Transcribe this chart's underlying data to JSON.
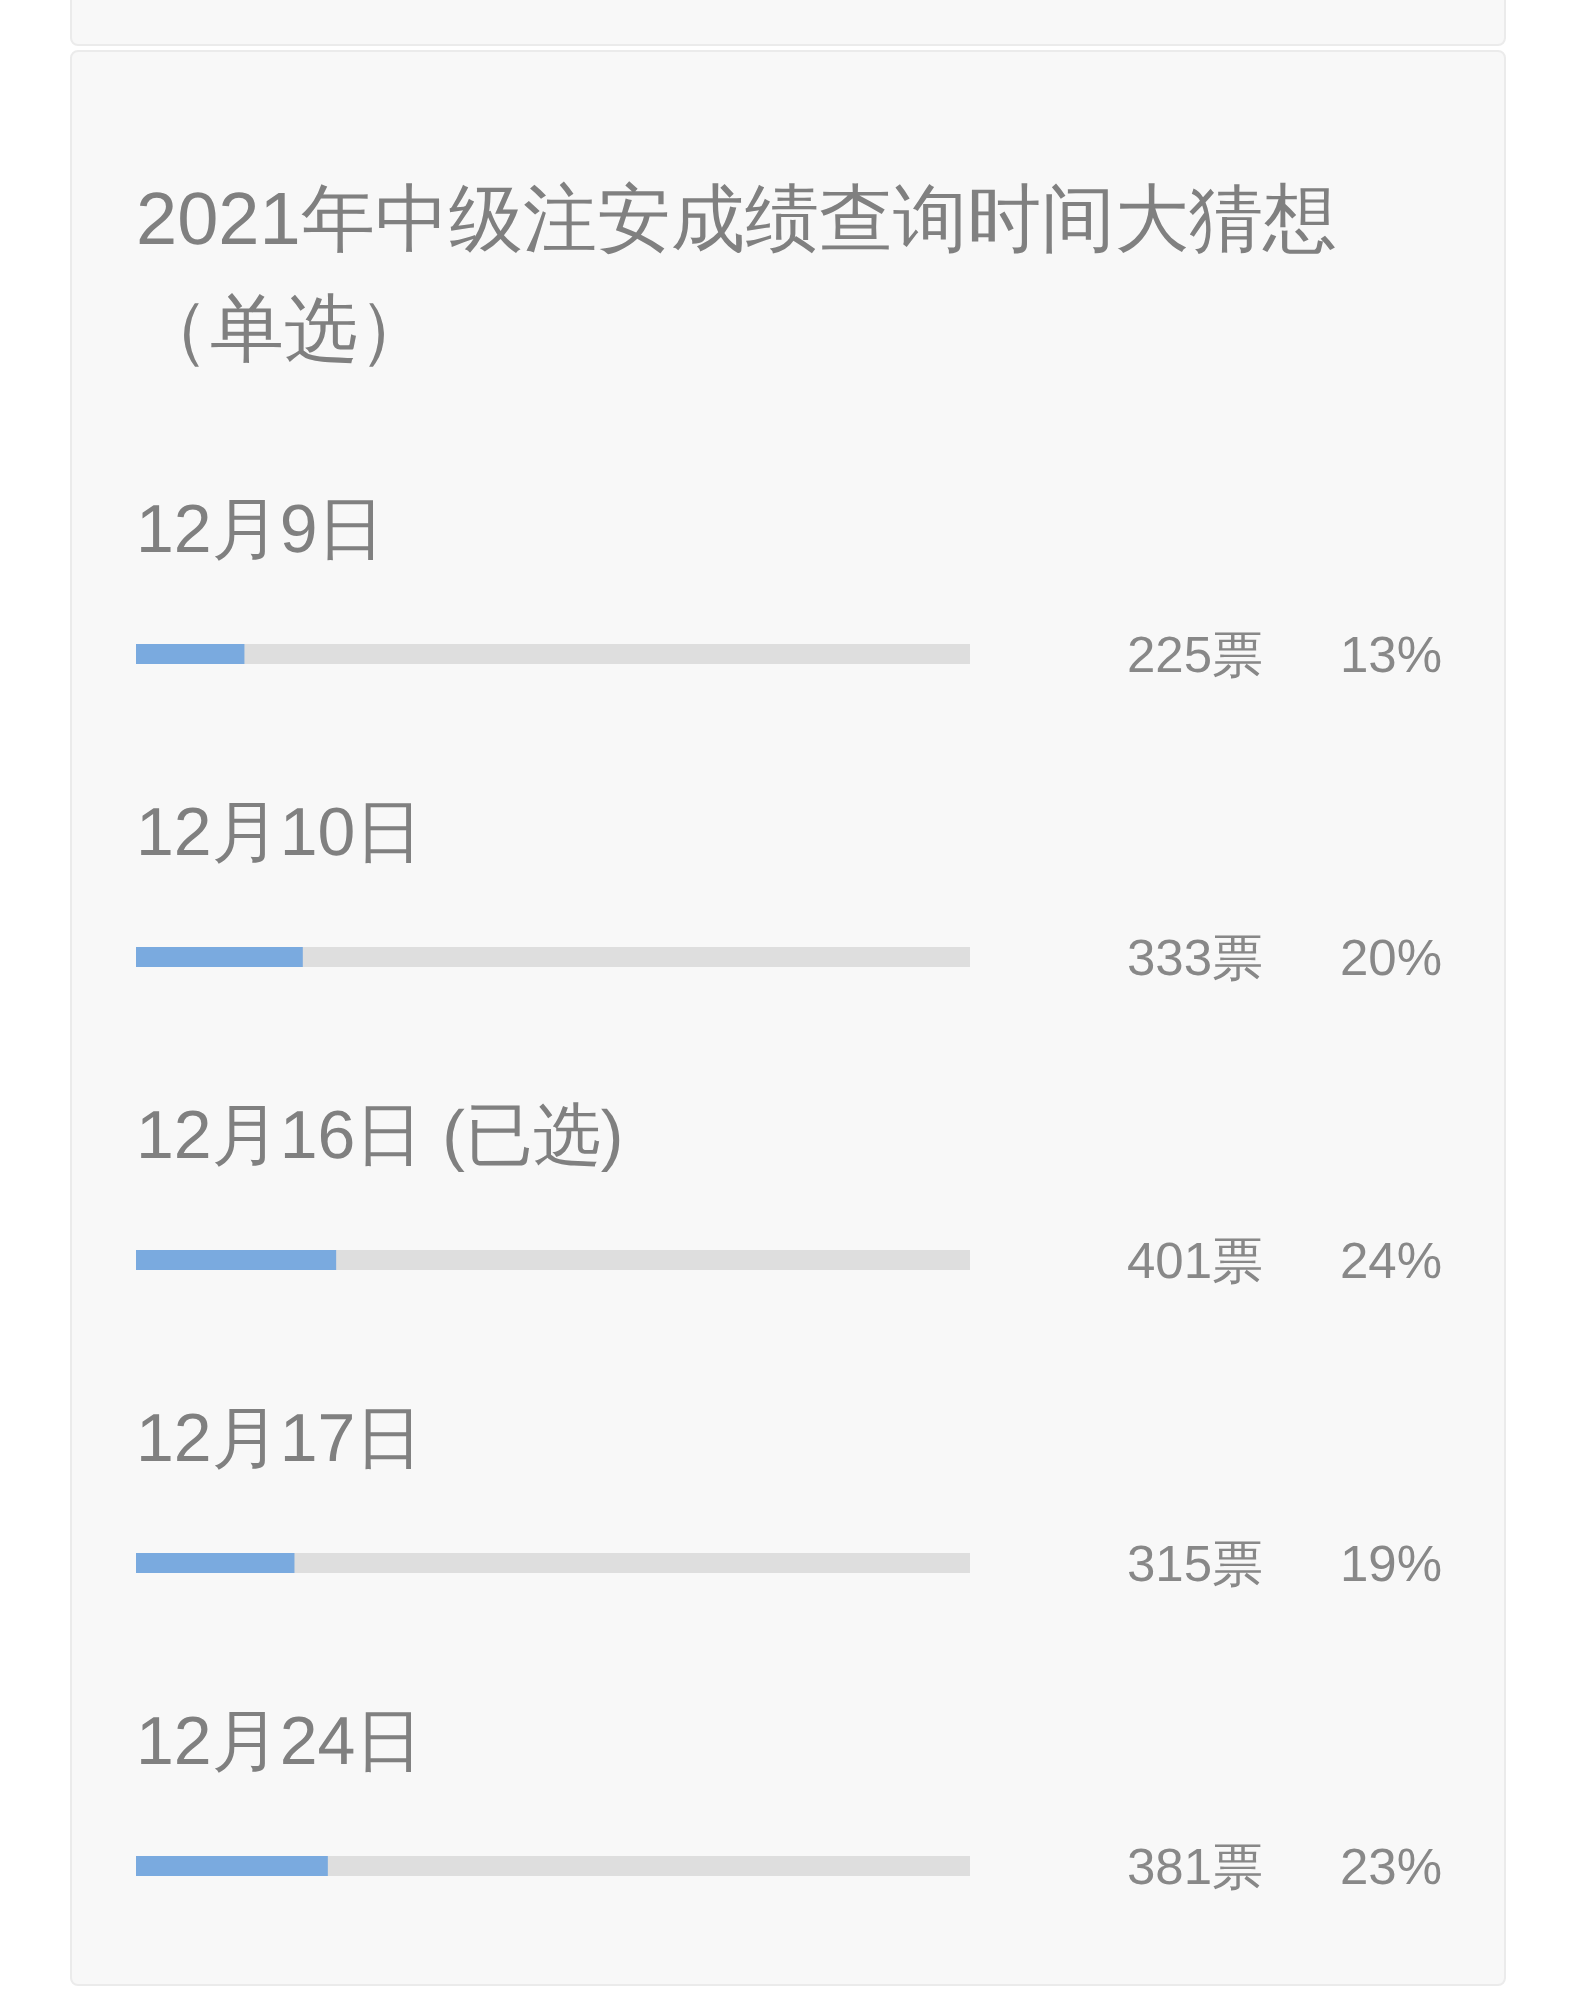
{
  "chart_data": {
    "type": "bar",
    "orientation": "horizontal",
    "title": "2021年中级注安成绩查询时间大猜想（单选）",
    "categories": [
      "12月9日",
      "12月10日",
      "12月16日 (已选)",
      "12月17日",
      "12月24日"
    ],
    "values": [
      13,
      20,
      24,
      19,
      23
    ],
    "value_labels": [
      "13%",
      "20%",
      "24%",
      "19%",
      "23%"
    ],
    "annotations": [
      "225票",
      "333票",
      "401票",
      "315票",
      "381票"
    ],
    "color": "#7aaadf",
    "xlim": [
      0,
      100
    ],
    "tick_labels": "y"
  }
}
